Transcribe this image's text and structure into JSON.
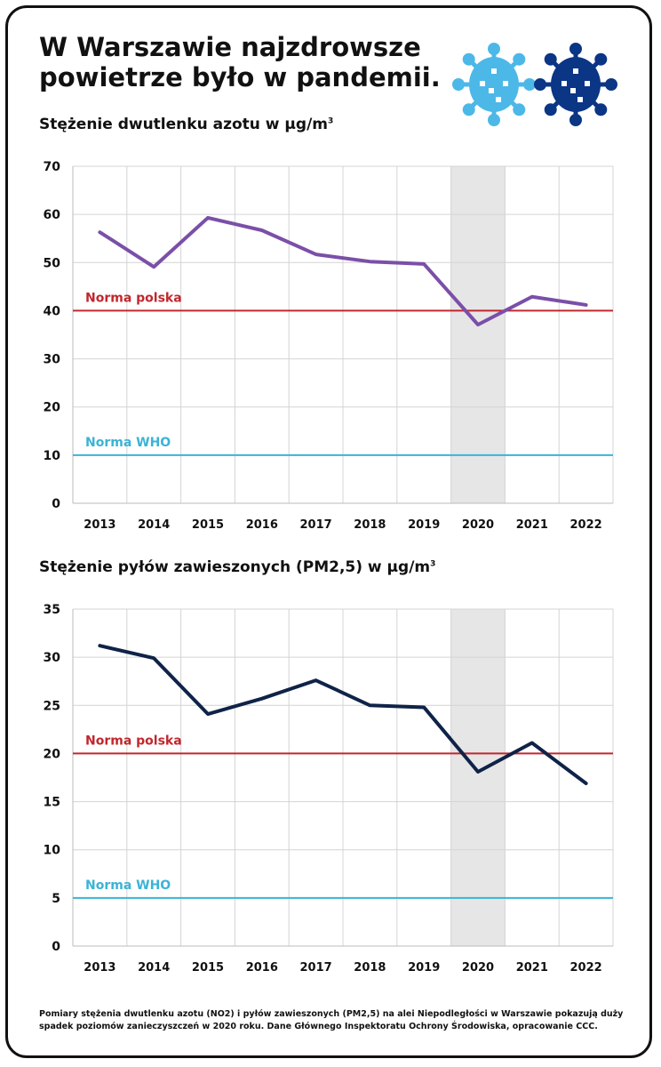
{
  "title_line1": "W Warszawie najzdrowsze",
  "title_line2": "powietrze było w pandemii.",
  "icons": [
    "virus-icon-light-blue",
    "virus-icon-dark-blue"
  ],
  "colors": {
    "no2_line": "#7b4fa8",
    "pm_line": "#0f2348",
    "norma_polska": "#c1272d",
    "norma_who": "#3bb3d6",
    "pandemic_shade": "#e6e6e6",
    "virus_light": "#4cb8e8",
    "virus_dark": "#0b3585"
  },
  "chart_data": [
    {
      "type": "line",
      "title": "Stężenie dwutlenku azotu w µg/m",
      "title_sup": "3",
      "categories": [
        "2013",
        "2014",
        "2015",
        "2016",
        "2017",
        "2018",
        "2019",
        "2020",
        "2021",
        "2022"
      ],
      "values": [
        56.3,
        49.1,
        59.3,
        56.7,
        51.7,
        50.2,
        49.7,
        37.1,
        42.9,
        41.2
      ],
      "ylim": [
        0,
        70
      ],
      "yticks": [
        0,
        10,
        20,
        30,
        40,
        50,
        60,
        70
      ],
      "highlight_category": "2020",
      "reference_lines": [
        {
          "label": "Norma polska",
          "value": 40
        },
        {
          "label": "Norma WHO",
          "value": 10
        }
      ],
      "grid": true
    },
    {
      "type": "line",
      "title": "Stężenie pyłów zawieszonych (PM2,5) w µg/m",
      "title_sup": "3",
      "categories": [
        "2013",
        "2014",
        "2015",
        "2016",
        "2017",
        "2018",
        "2019",
        "2020",
        "2021",
        "2022"
      ],
      "values": [
        31.2,
        29.9,
        24.1,
        25.7,
        27.6,
        25.0,
        24.8,
        18.1,
        21.1,
        16.9
      ],
      "ylim": [
        0,
        35
      ],
      "yticks": [
        0,
        5,
        10,
        15,
        20,
        25,
        30,
        35
      ],
      "highlight_category": "2020",
      "reference_lines": [
        {
          "label": "Norma polska",
          "value": 20
        },
        {
          "label": "Norma WHO",
          "value": 5
        }
      ],
      "grid": true
    }
  ],
  "footer_line1": "Pomiary stężenia dwutlenku azotu (NO2) i pyłów zawieszonych (PM2,5) na alei Niepodległości w Warszawie pokazują duży",
  "footer_line2": "spadek poziomów zanieczyszczeń w 2020 roku. Dane Głównego Inspektoratu Ochrony Środowiska, opracowanie CCC."
}
